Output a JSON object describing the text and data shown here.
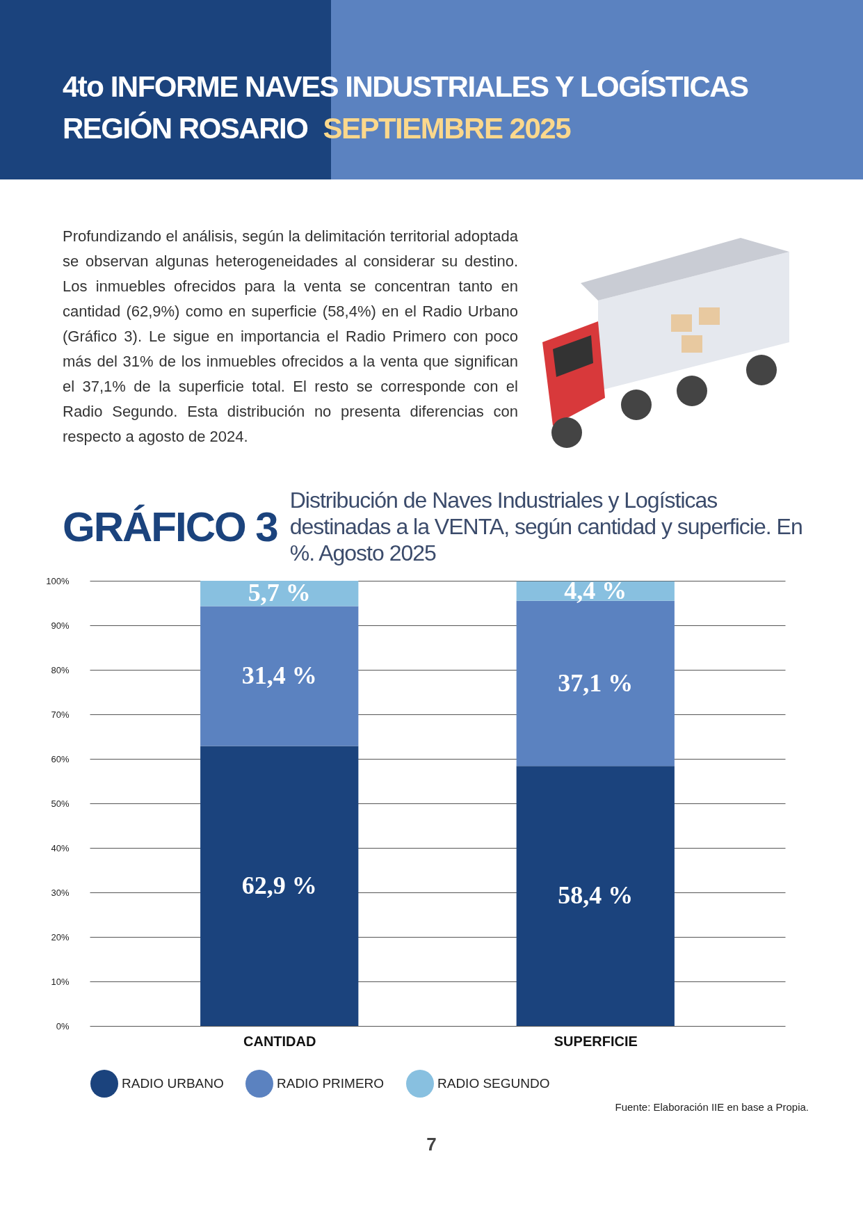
{
  "chart_data": {
    "type": "bar",
    "title": "GRÁFICO 3",
    "subtitle": "Distribución de Naves Industriales y Logísticas destinadas a la VENTA, según cantidad y superficie. En %. Agosto 2025",
    "categories": [
      "CANTIDAD",
      "SUPERFICIE"
    ],
    "series": [
      {
        "name": "RADIO URBANO",
        "color": "#1b437d",
        "values": [
          62.9,
          58.4
        ],
        "value_labels": [
          "62,9 %",
          "58,4 %"
        ]
      },
      {
        "name": "RADIO PRIMERO",
        "color": "#5b82c0",
        "values": [
          31.4,
          37.1
        ],
        "value_labels": [
          "31,4 %",
          "37,1 %"
        ]
      },
      {
        "name": "RADIO SEGUNDO",
        "color": "#88c0e0",
        "values": [
          5.7,
          4.4
        ],
        "value_labels": [
          "5,7 %",
          "4,4 %"
        ]
      }
    ],
    "stacked": true,
    "ylim": [
      0,
      100
    ],
    "yticks": [
      {
        "value": 0,
        "label": "0%"
      },
      {
        "value": 10,
        "label": "10%"
      },
      {
        "value": 20,
        "label": "20%"
      },
      {
        "value": 30,
        "label": "30%"
      },
      {
        "value": 40,
        "label": "40%"
      },
      {
        "value": 50,
        "label": "50%"
      },
      {
        "value": 60,
        "label": "60%"
      },
      {
        "value": 70,
        "label": "70%"
      },
      {
        "value": 80,
        "label": "80%"
      },
      {
        "value": 90,
        "label": "90%"
      },
      {
        "value": 100,
        "label": "100%"
      }
    ],
    "grid": "y",
    "legend": "bottom",
    "annotations": [
      "4to INFORME NAVES INDUSTRIALES Y LOGÍSTICAS",
      "REGIÓN ROSARIO",
      "SEPTIEMBRE 2025",
      "Profundizando el análisis, según la delimitación territorial adoptada se observan algunas heterogeneidades al considerar su destino. Los inmuebles ofrecidos para la venta se concentran tanto en cantidad (62,9%) como en superficie (58,4%) en el Radio Urbano (Gráfico 3). Le sigue en importancia el Radio Primero con poco más del 31% de los inmuebles ofrecidos a la venta que significan el 37,1% de la superficie total. El resto se corresponde con el Radio Segundo. Esta distribución no presenta diferencias con respecto a agosto de 2024.",
      "Fuente: Elaboración IIE en base a Propia.",
      "7"
    ]
  }
}
